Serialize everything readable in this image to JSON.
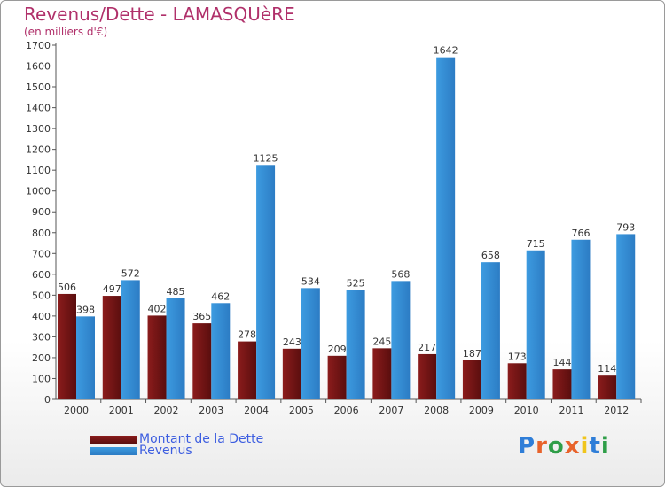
{
  "chart_data": {
    "type": "bar",
    "title": "Revenus/Dette - LAMASQUèRE",
    "subtitle": "(en milliers d'€)",
    "categories": [
      "2000",
      "2001",
      "2002",
      "2003",
      "2004",
      "2005",
      "2006",
      "2007",
      "2008",
      "2009",
      "2010",
      "2011",
      "2012"
    ],
    "series": [
      {
        "name": "Montant de la Dette",
        "color": "#8b1c1c",
        "values": [
          506,
          497,
          402,
          365,
          278,
          243,
          209,
          245,
          217,
          187,
          173,
          144,
          114
        ]
      },
      {
        "name": "Revenus",
        "color": "#3d9be0",
        "values": [
          398,
          572,
          485,
          462,
          1125,
          534,
          525,
          568,
          1642,
          658,
          715,
          766,
          793
        ]
      }
    ],
    "ylim": [
      0,
      1700
    ],
    "yticks": [
      0,
      100,
      200,
      300,
      400,
      500,
      600,
      700,
      800,
      900,
      1000,
      1100,
      1200,
      1300,
      1400,
      1500,
      1600,
      1700
    ],
    "grid": false,
    "legend_position": "bottom-left"
  },
  "logo": {
    "text": "Proxiti",
    "letters": [
      "P",
      "r",
      "o",
      "x",
      "i",
      "t",
      "i"
    ],
    "letter_colors": [
      "#2f7ed8",
      "#e8632b",
      "#2f9e48",
      "#e8632b",
      "#f0c51c",
      "#2f7ed8",
      "#2f9e48"
    ]
  }
}
